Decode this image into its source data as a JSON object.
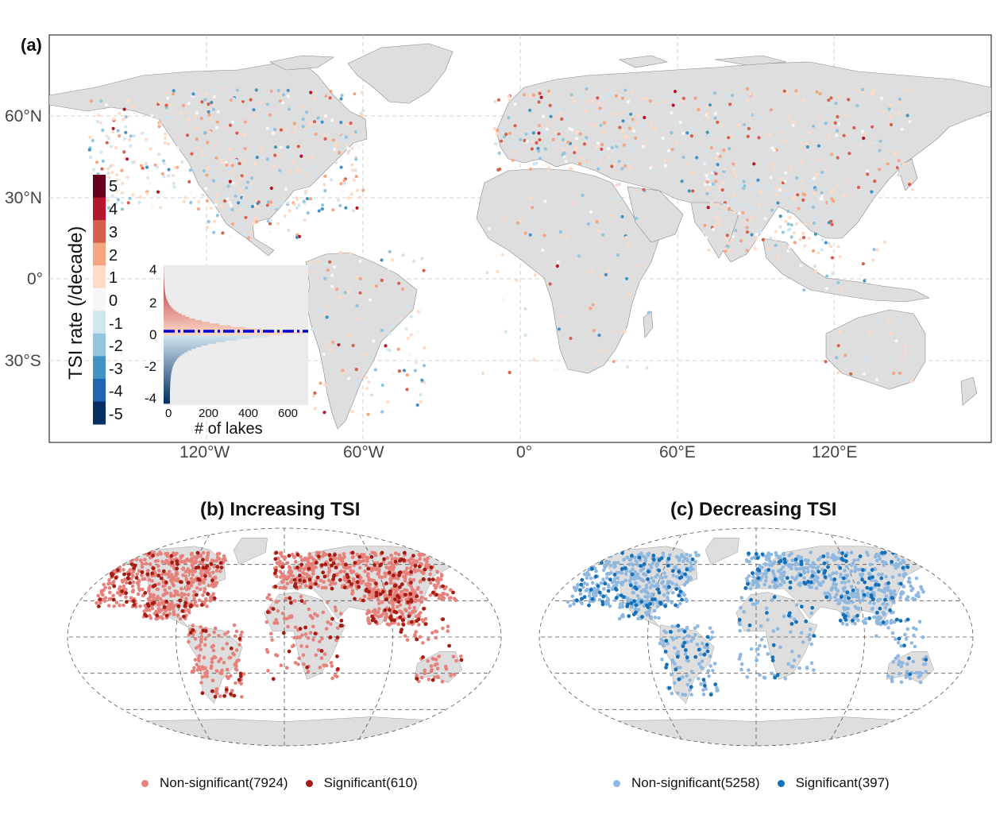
{
  "panel_a": {
    "label": "(a)",
    "lat_labels": [
      "60°N",
      "30°N",
      "0°",
      "30°S"
    ],
    "lon_labels": [
      "120°W",
      "60°W",
      "0°",
      "60°E",
      "120°E"
    ],
    "colorbar": {
      "title": "TSI rate (/decade)",
      "ticks": [
        "5",
        "4",
        "3",
        "2",
        "1",
        "0",
        "-1",
        "-2",
        "-3",
        "-4",
        "-5"
      ],
      "colors": [
        "#67001f",
        "#b2182b",
        "#d6604d",
        "#f4a582",
        "#fddbc7",
        "#f7f7f7",
        "#d1e5f0",
        "#92c5de",
        "#4393c3",
        "#2166ac",
        "#053061"
      ]
    },
    "inset_histogram": {
      "xlabel": "# of lakes",
      "x_ticks": [
        "0",
        "200",
        "400",
        "600"
      ],
      "y_ticks": [
        "4",
        "2",
        "0",
        "-2",
        "-4"
      ],
      "xlim": [
        0,
        700
      ],
      "ylim": [
        -4.2,
        4.2
      ],
      "mean_line_y": 0.15,
      "mean_line_color": "#0000cc"
    }
  },
  "panel_b": {
    "title": "(b) Increasing TSI",
    "legend": [
      {
        "label": "Non-significant(7924)",
        "color": "#e6817b"
      },
      {
        "label": "Significant(610)",
        "color": "#a51c13"
      }
    ]
  },
  "panel_c": {
    "title": "(c) Decreasing TSI",
    "legend": [
      {
        "label": "Non-significant(5258)",
        "color": "#8fb8e0"
      },
      {
        "label": "Significant(397)",
        "color": "#1470b8"
      }
    ]
  }
}
